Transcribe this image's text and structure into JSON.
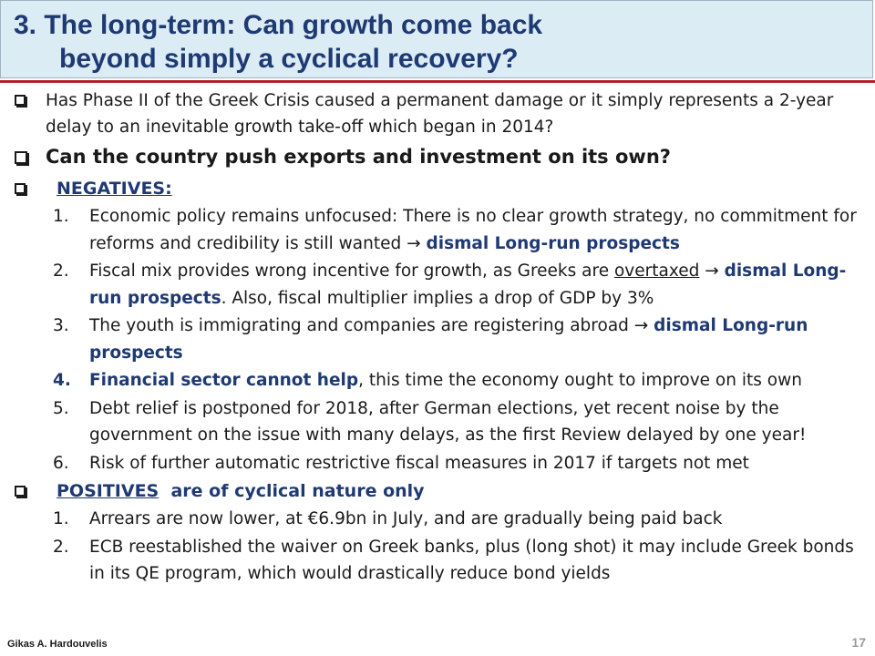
{
  "title": {
    "line1": "3.  The long-term: Can growth come back",
    "line2": "beyond simply a cyclical recovery?"
  },
  "questions": [
    "Has Phase II of the Greek Crisis caused a permanent damage or it simply represents  a 2-year delay to an inevitable  growth take-off which began in 2014?",
    "Can the country push exports and investment on its own?"
  ],
  "negatives": {
    "heading": "NEGATIVES:",
    "items": [
      {
        "num": "1.",
        "pre": "Economic policy  remains unfocused:  There is no clear growth strategy, no commitment for reforms and credibility  is still wanted → ",
        "bold": "dismal Long-run prospects"
      },
      {
        "num": "2.",
        "pre": "Fiscal mix provides wrong incentive for growth, as Greeks are ",
        "under": "overtaxed",
        "mid": " → ",
        "bold": "dismal Long-run prospects",
        "post": ".  Also, fiscal multiplier implies a drop of GDP by 3%"
      },
      {
        "num": "3.",
        "pre": "The youth is immigrating and companies are registering abroad → ",
        "bold": "dismal Long-run prospects"
      },
      {
        "num": "4.",
        "bold": "Financial sector cannot help",
        "post": ", this time the economy ought to improve on its own"
      },
      {
        "num": "5.",
        "pre": "Debt relief is postponed for 2018, after German elections, yet recent noise by the government on the issue with many delays, as the first Review delayed by one year!"
      },
      {
        "num": "6.",
        "pre": "Risk of further automatic restrictive fiscal measures in 2017 if targets not met"
      }
    ]
  },
  "positives": {
    "heading": "POSITIVES",
    "heading_rest": "  are of cyclical nature only",
    "items": [
      {
        "num": "1.",
        "text": "Arrears  are now lower, at  €6.9bn in July, and are gradually being paid back"
      },
      {
        "num": "2.",
        "text": "ECB reestablished the waiver on Greek banks, plus (long shot) it may include Greek bonds in its QE program, which would drastically reduce bond yields"
      }
    ]
  },
  "footer": {
    "author": "Gikas A. Hardouvelis",
    "page": "17"
  },
  "colors": {
    "title": "#1f3a73",
    "header_bg": "#dcecf5",
    "rule": "#b2202a"
  }
}
